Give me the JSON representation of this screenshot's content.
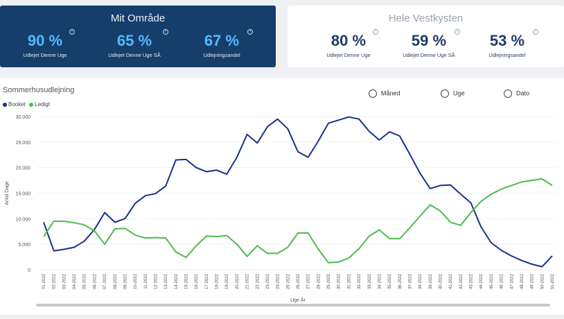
{
  "local_card": {
    "title": "Mit Område",
    "kpis": [
      {
        "value": "90 %",
        "label": "Udlejet Denne Uge"
      },
      {
        "value": "65 %",
        "label": "Udlejet Denne Uge SÅ"
      },
      {
        "value": "67 %",
        "label": "Udlejningsandel"
      }
    ]
  },
  "coast_card": {
    "title": "Hele Vestkysten",
    "kpis": [
      {
        "value": "80 %",
        "label": "Udlejet Denne Uge"
      },
      {
        "value": "59 %",
        "label": "Udlejet Denne Uge SÅ"
      },
      {
        "value": "53 %",
        "label": "Udlejningsandel"
      }
    ]
  },
  "info_glyph": "i",
  "filters": {
    "month": "Måned",
    "week": "Uge",
    "date": "Dato"
  },
  "colors": {
    "booked": "#1a2f8c",
    "available": "#4cbb4c"
  },
  "chart_data": {
    "type": "line",
    "title": "Sommerhusudlejning",
    "xlabel": "Uge År",
    "ylabel": "Antal Dage",
    "ylim": [
      0,
      30000
    ],
    "y_ticks": [
      "0",
      "5.000",
      "10.000",
      "15.000",
      "20.000",
      "25.000",
      "30.000"
    ],
    "x": [
      "01-2022",
      "02-2022",
      "03-2022",
      "04-2022",
      "05-2022",
      "06-2022",
      "07-2022",
      "08-2022",
      "09-2022",
      "10-2022",
      "11-2022",
      "12-2022",
      "13-2022",
      "14-2022",
      "15-2022",
      "16-2022",
      "17-2022",
      "18-2022",
      "19-2022",
      "20-2022",
      "21-2022",
      "22-2022",
      "23-2022",
      "24-2022",
      "25-2022",
      "26-2022",
      "27-2022",
      "28-2022",
      "29-2022",
      "30-2022",
      "31-2022",
      "32-2022",
      "33-2022",
      "34-2022",
      "35-2022",
      "36-2022",
      "37-2022",
      "38-2022",
      "39-2022",
      "40-2022",
      "41-2022",
      "42-2022",
      "43-2022",
      "44-2022",
      "45-2022",
      "46-2022",
      "47-2022",
      "48-2022",
      "49-2022",
      "50-2022",
      "51-2022"
    ],
    "series": [
      {
        "name": "Booket",
        "values": [
          9300,
          3700,
          4000,
          4400,
          5600,
          7900,
          11200,
          9300,
          10000,
          13000,
          14500,
          14900,
          16400,
          21500,
          21600,
          20000,
          19200,
          19500,
          18700,
          22000,
          26500,
          24800,
          28000,
          29500,
          27600,
          23100,
          22000,
          25200,
          28700,
          29300,
          29900,
          29500,
          27100,
          25400,
          27000,
          26200,
          22600,
          18900,
          15900,
          16500,
          16600,
          14800,
          13100,
          8400,
          5300,
          3800,
          2700,
          1800,
          1100,
          600,
          2700
        ]
      },
      {
        "name": "Ledigt",
        "values": [
          6500,
          9500,
          9500,
          9200,
          8800,
          7600,
          5000,
          8000,
          8100,
          6800,
          6200,
          6300,
          6200,
          3500,
          2400,
          4700,
          6600,
          6500,
          6700,
          5000,
          2600,
          4700,
          3200,
          3200,
          4400,
          7200,
          7200,
          4000,
          1400,
          1500,
          2300,
          4100,
          6600,
          7800,
          6100,
          6100,
          8200,
          10500,
          12700,
          11500,
          9300,
          8700,
          11200,
          13400,
          14800,
          15800,
          16500,
          17200,
          17500,
          17800,
          16500
        ]
      }
    ]
  }
}
